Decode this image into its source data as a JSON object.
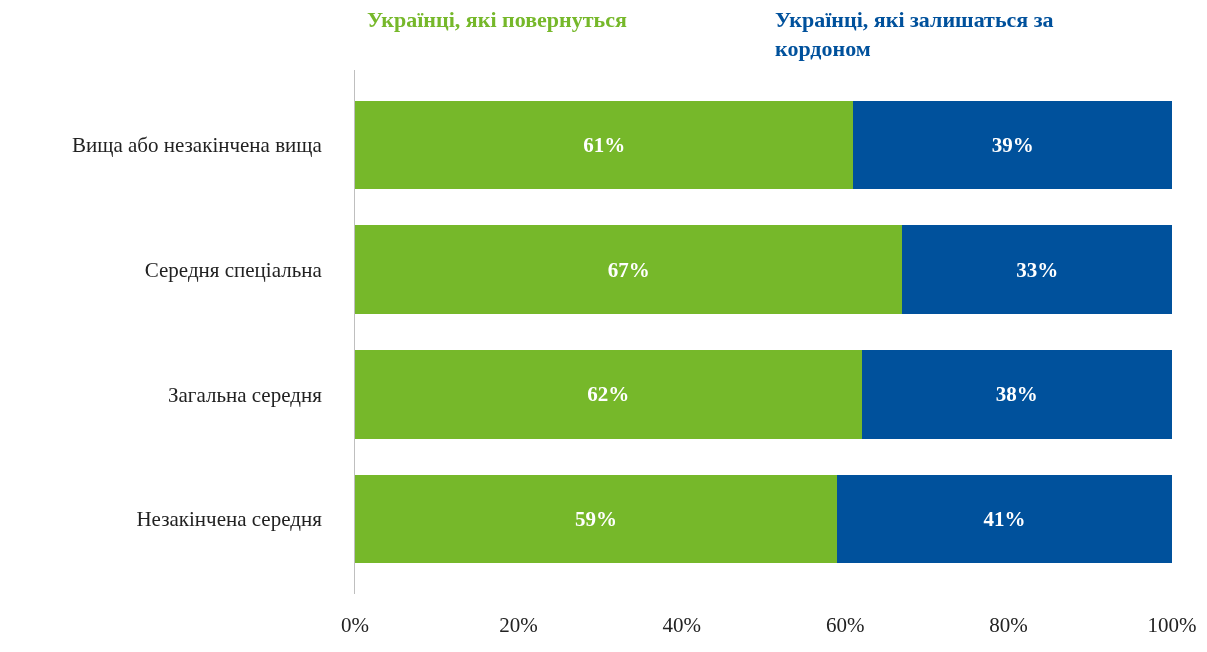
{
  "chart_data": {
    "type": "bar",
    "orientation": "horizontal",
    "stacked": true,
    "legend": "top",
    "categories": [
      "Вища або незакінчена вища",
      "Середня спеціальна",
      "Загальна середня",
      "Незакінчена середня"
    ],
    "series": [
      {
        "name": "Українці, які повернуться",
        "color": "#76b82a",
        "values": [
          61,
          67,
          62,
          59
        ],
        "value_labels": [
          "61%",
          "67%",
          "62%",
          "59%"
        ]
      },
      {
        "name": "Українці, які залишаться за кордоном",
        "color": "#00519c",
        "values": [
          39,
          33,
          38,
          41
        ],
        "value_labels": [
          "39%",
          "33%",
          "38%",
          "41%"
        ]
      }
    ],
    "xlim": [
      0,
      100
    ],
    "xticks": [
      {
        "value": 0,
        "label": "0%"
      },
      {
        "value": 20,
        "label": "20%"
      },
      {
        "value": 40,
        "label": "40%"
      },
      {
        "value": 60,
        "label": "60%"
      },
      {
        "value": 80,
        "label": "80%"
      },
      {
        "value": 100,
        "label": "100%"
      }
    ],
    "grid": false
  }
}
